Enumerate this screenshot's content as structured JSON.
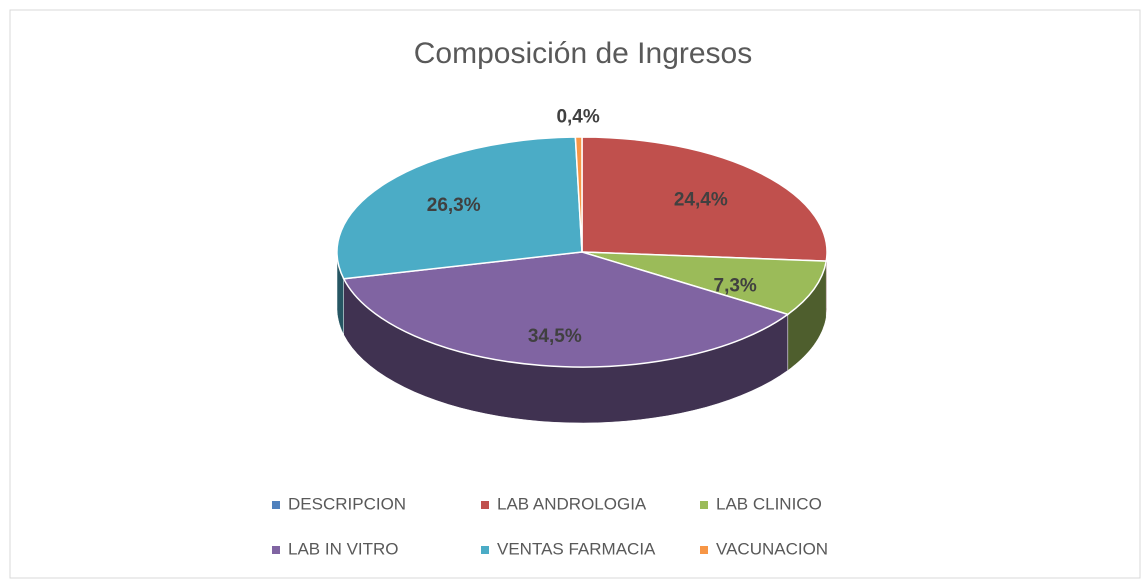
{
  "chart_data": {
    "type": "pie",
    "title": "Composición de Ingresos",
    "categories": [
      "DESCRIPCION",
      "LAB ANDROLOGIA",
      "LAB CLINICO",
      "LAB IN VITRO",
      "VENTAS FARMACIA",
      "VACUNACION"
    ],
    "values": [
      0,
      24.4,
      7.3,
      34.5,
      26.3,
      0.4
    ],
    "value_labels": [
      null,
      "24,4%",
      "7,3%",
      "34,5%",
      "26,3%",
      "0,4%"
    ],
    "colors": [
      "#4f81bd",
      "#c0504d",
      "#9bbb59",
      "#8064a2",
      "#4bacc6",
      "#f79646"
    ],
    "legend": "bottom"
  }
}
